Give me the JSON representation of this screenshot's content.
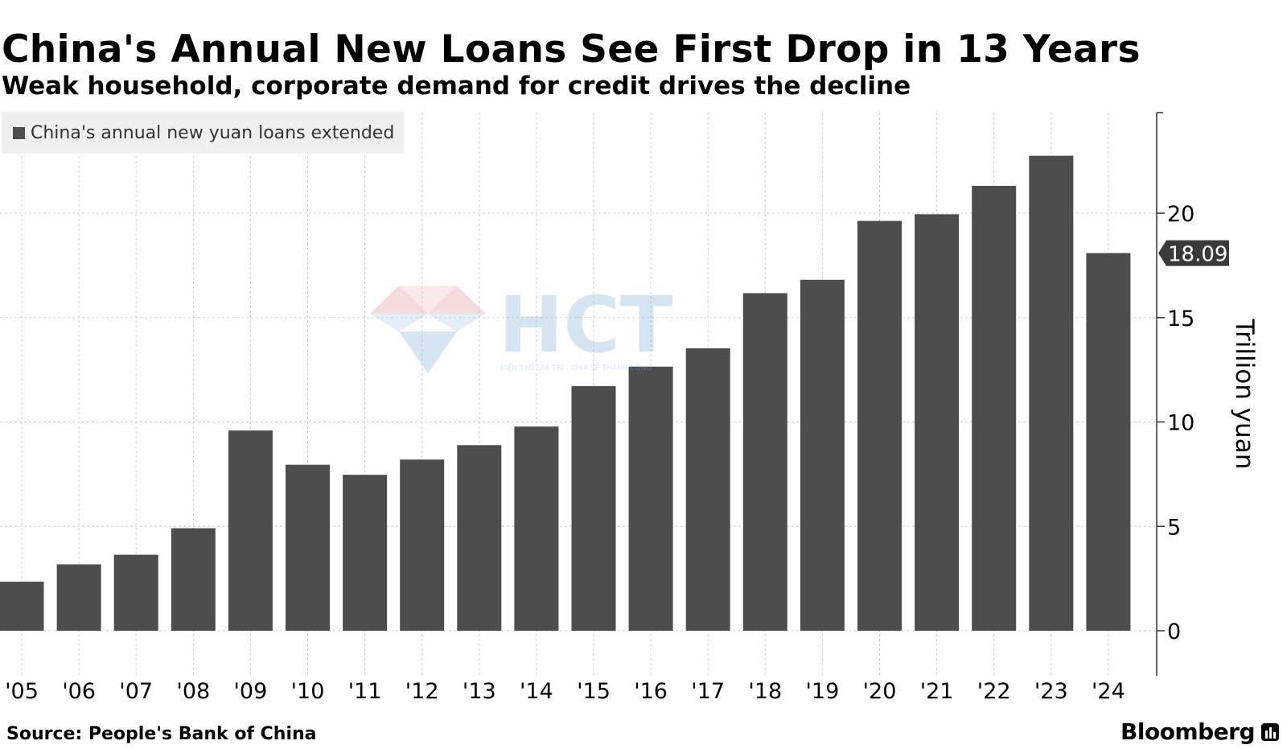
{
  "header": {
    "title": "China's Annual New Loans See First Drop in 13 Years",
    "subtitle": "Weak household, corporate demand for credit drives the decline"
  },
  "legend": {
    "label": "China's annual new yuan loans extended"
  },
  "footer": {
    "source": "Source: People's Bank of China",
    "brand": "Bloomberg"
  },
  "watermark": {
    "text": "HCT",
    "tagline": "KIẾN TẠO GIÁ TRỊ - CHIA SẺ THÀNH CÔNG"
  },
  "colors": {
    "bar": "#4d4d4d",
    "grid": "#cfcfcf",
    "callout": "#3a3a3a"
  },
  "chart_data": {
    "type": "bar",
    "categories": [
      "'05",
      "'06",
      "'07",
      "'08",
      "'09",
      "'10",
      "'11",
      "'12",
      "'13",
      "'14",
      "'15",
      "'16",
      "'17",
      "'18",
      "'19",
      "'20",
      "'21",
      "'22",
      "'23",
      "'24"
    ],
    "series": [
      {
        "name": "China's annual new yuan loans extended",
        "values": [
          2.35,
          3.18,
          3.64,
          4.91,
          9.59,
          7.95,
          7.47,
          8.2,
          8.89,
          9.78,
          11.72,
          12.65,
          13.53,
          16.17,
          16.81,
          19.63,
          19.95,
          21.31,
          22.75,
          18.09
        ]
      }
    ],
    "last_value_label": "18.09",
    "ylabel": "Trillion yuan",
    "ylim": [
      0,
      25
    ],
    "yticks": [
      0,
      5,
      10,
      15,
      20
    ],
    "grid": true,
    "legend_position": "top-left",
    "y_axis_position": "right"
  }
}
